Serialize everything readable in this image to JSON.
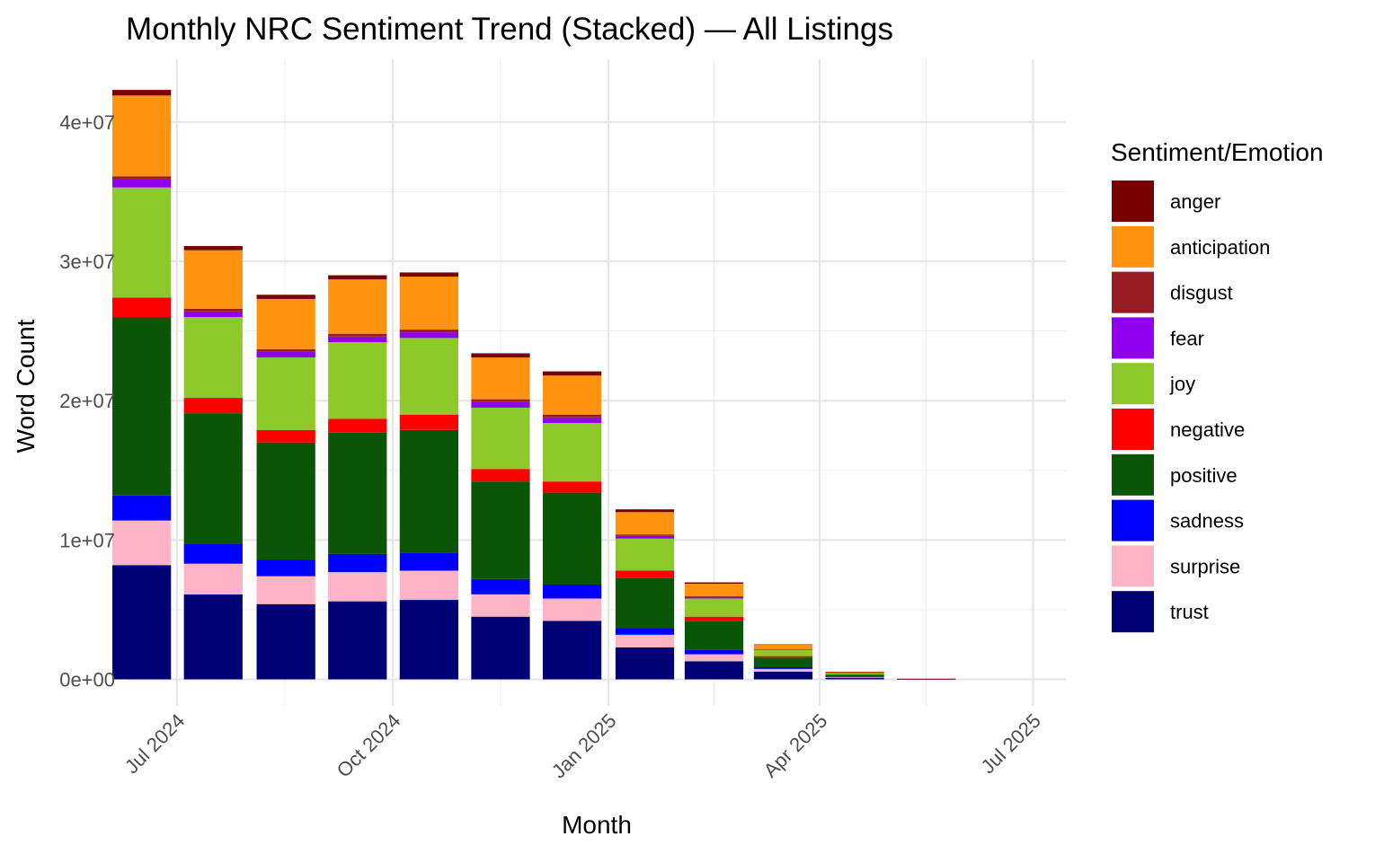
{
  "chart_data": {
    "type": "bar",
    "stacked": true,
    "title": "Monthly NRC Sentiment Trend (Stacked) — All Listings",
    "xlabel": "Month",
    "ylabel": "Word Count",
    "legend_title": "Sentiment/Emotion",
    "legend_position": "right",
    "grid": true,
    "ylim": [
      -1900000,
      44500000
    ],
    "y_ticks": [
      0,
      10000000,
      20000000,
      30000000,
      40000000
    ],
    "y_tick_labels": [
      "0e+00",
      "1e+07",
      "2e+07",
      "3e+07",
      "4e+07"
    ],
    "x_range": [
      "2024-06-10",
      "2025-07-15"
    ],
    "x_ticks": [
      "2024-07-01",
      "2024-10-01",
      "2025-01-01",
      "2025-04-01",
      "2025-07-01"
    ],
    "x_tick_labels": [
      "Jul 2024",
      "Oct 2024",
      "Jan 2025",
      "Apr 2025",
      "Jul 2025"
    ],
    "categories": [
      "2024-06",
      "2024-07",
      "2024-08",
      "2024-09",
      "2024-10",
      "2024-11",
      "2024-12",
      "2025-01",
      "2025-02",
      "2025-03",
      "2025-04",
      "2025-05"
    ],
    "series": [
      {
        "name": "trust",
        "color": "#000075",
        "values": [
          8200000,
          6100000,
          5400000,
          5600000,
          5700000,
          4500000,
          4200000,
          2300000,
          1300000,
          550000,
          110000,
          8000
        ]
      },
      {
        "name": "surprise",
        "color": "#FFB3C6",
        "values": [
          3200000,
          2200000,
          2000000,
          2100000,
          2100000,
          1600000,
          1600000,
          900000,
          500000,
          200000,
          45000,
          3000
        ]
      },
      {
        "name": "sadness",
        "color": "#0000FF",
        "values": [
          1800000,
          1400000,
          1200000,
          1300000,
          1300000,
          1100000,
          1000000,
          500000,
          300000,
          120000,
          25000,
          2000
        ]
      },
      {
        "name": "positive",
        "color": "#0B5507",
        "values": [
          12800000,
          9400000,
          8400000,
          8700000,
          8800000,
          7000000,
          6600000,
          3600000,
          2100000,
          700000,
          150000,
          12000
        ]
      },
      {
        "name": "negative",
        "color": "#FF0000",
        "values": [
          1400000,
          1100000,
          900000,
          1000000,
          1100000,
          900000,
          800000,
          500000,
          300000,
          100000,
          20000,
          2000
        ]
      },
      {
        "name": "joy",
        "color": "#8CC929",
        "values": [
          7900000,
          5800000,
          5200000,
          5500000,
          5500000,
          4400000,
          4200000,
          2300000,
          1300000,
          450000,
          100000,
          8000
        ]
      },
      {
        "name": "fear",
        "color": "#9000EE",
        "values": [
          600000,
          400000,
          400000,
          400000,
          400000,
          400000,
          400000,
          200000,
          100000,
          40000,
          9000,
          1000
        ]
      },
      {
        "name": "disgust",
        "color": "#991C22",
        "values": [
          200000,
          200000,
          200000,
          200000,
          200000,
          200000,
          200000,
          100000,
          60000,
          20000,
          5000,
          500
        ]
      },
      {
        "name": "anticipation",
        "color": "#FF930F",
        "values": [
          5800000,
          4200000,
          3600000,
          3900000,
          3800000,
          3000000,
          2800000,
          1600000,
          900000,
          300000,
          70000,
          5000
        ]
      },
      {
        "name": "anger",
        "color": "#780000",
        "values": [
          400000,
          300000,
          300000,
          300000,
          300000,
          300000,
          300000,
          200000,
          100000,
          30000,
          7000,
          500
        ]
      }
    ],
    "legend_order": [
      "anger",
      "anticipation",
      "disgust",
      "fear",
      "joy",
      "negative",
      "positive",
      "sadness",
      "surprise",
      "trust"
    ]
  }
}
